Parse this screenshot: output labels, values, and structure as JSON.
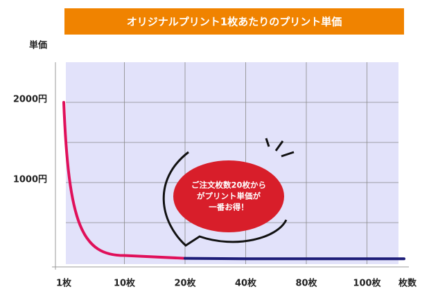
{
  "chart_data": {
    "type": "line",
    "title": "オリジナルプリント1枚あたりのプリント単価",
    "y_label": "単価",
    "x_label": "枚数",
    "categories": [
      "1枚",
      "10枚",
      "20枚",
      "40枚",
      "80枚",
      "100枚"
    ],
    "series": [
      {
        "color": "#e0105a",
        "values": [
          2000,
          90,
          55,
          null,
          null,
          null
        ]
      },
      {
        "color": "#1c1c78",
        "values": [
          null,
          null,
          55,
          50,
          50,
          50
        ]
      }
    ],
    "ylim": [
      0,
      2500
    ],
    "yticks": [
      {
        "value": 500,
        "label": null
      },
      {
        "value": 1000,
        "label": "1000円"
      },
      {
        "value": 1500,
        "label": null
      },
      {
        "value": 2000,
        "label": "2000円"
      }
    ],
    "grid": true,
    "annotation": [
      "ご注文枚数20枚から",
      "がプリント単価が",
      "一番お得！"
    ]
  }
}
